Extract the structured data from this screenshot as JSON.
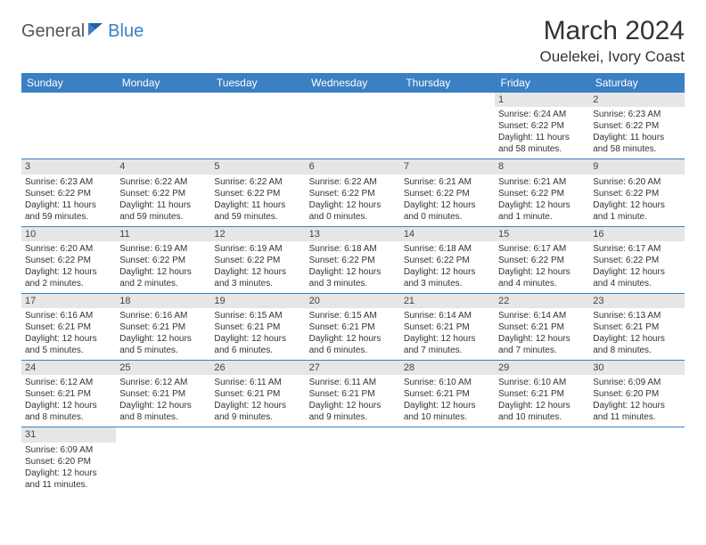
{
  "brand": {
    "part1": "General",
    "part2": "Blue"
  },
  "title": "March 2024",
  "location": "Ouelekei, Ivory Coast",
  "colors": {
    "header_bg": "#3b7fc4",
    "header_text": "#ffffff",
    "daynum_bg": "#e6e6e6",
    "row_divider": "#3b7fc4",
    "text": "#333333",
    "logo_gray": "#555555",
    "logo_blue": "#3b7fc4",
    "background": "#ffffff"
  },
  "typography": {
    "title_fontsize": 30,
    "location_fontsize": 17,
    "dayheader_fontsize": 12,
    "cell_fontsize": 10,
    "logo_fontsize": 20
  },
  "day_headers": [
    "Sunday",
    "Monday",
    "Tuesday",
    "Wednesday",
    "Thursday",
    "Friday",
    "Saturday"
  ],
  "weeks": [
    [
      {
        "empty": true
      },
      {
        "empty": true
      },
      {
        "empty": true
      },
      {
        "empty": true
      },
      {
        "empty": true
      },
      {
        "day": "1",
        "sunrise": "Sunrise: 6:24 AM",
        "sunset": "Sunset: 6:22 PM",
        "daylight1": "Daylight: 11 hours",
        "daylight2": "and 58 minutes."
      },
      {
        "day": "2",
        "sunrise": "Sunrise: 6:23 AM",
        "sunset": "Sunset: 6:22 PM",
        "daylight1": "Daylight: 11 hours",
        "daylight2": "and 58 minutes."
      }
    ],
    [
      {
        "day": "3",
        "sunrise": "Sunrise: 6:23 AM",
        "sunset": "Sunset: 6:22 PM",
        "daylight1": "Daylight: 11 hours",
        "daylight2": "and 59 minutes."
      },
      {
        "day": "4",
        "sunrise": "Sunrise: 6:22 AM",
        "sunset": "Sunset: 6:22 PM",
        "daylight1": "Daylight: 11 hours",
        "daylight2": "and 59 minutes."
      },
      {
        "day": "5",
        "sunrise": "Sunrise: 6:22 AM",
        "sunset": "Sunset: 6:22 PM",
        "daylight1": "Daylight: 11 hours",
        "daylight2": "and 59 minutes."
      },
      {
        "day": "6",
        "sunrise": "Sunrise: 6:22 AM",
        "sunset": "Sunset: 6:22 PM",
        "daylight1": "Daylight: 12 hours",
        "daylight2": "and 0 minutes."
      },
      {
        "day": "7",
        "sunrise": "Sunrise: 6:21 AM",
        "sunset": "Sunset: 6:22 PM",
        "daylight1": "Daylight: 12 hours",
        "daylight2": "and 0 minutes."
      },
      {
        "day": "8",
        "sunrise": "Sunrise: 6:21 AM",
        "sunset": "Sunset: 6:22 PM",
        "daylight1": "Daylight: 12 hours",
        "daylight2": "and 1 minute."
      },
      {
        "day": "9",
        "sunrise": "Sunrise: 6:20 AM",
        "sunset": "Sunset: 6:22 PM",
        "daylight1": "Daylight: 12 hours",
        "daylight2": "and 1 minute."
      }
    ],
    [
      {
        "day": "10",
        "sunrise": "Sunrise: 6:20 AM",
        "sunset": "Sunset: 6:22 PM",
        "daylight1": "Daylight: 12 hours",
        "daylight2": "and 2 minutes."
      },
      {
        "day": "11",
        "sunrise": "Sunrise: 6:19 AM",
        "sunset": "Sunset: 6:22 PM",
        "daylight1": "Daylight: 12 hours",
        "daylight2": "and 2 minutes."
      },
      {
        "day": "12",
        "sunrise": "Sunrise: 6:19 AM",
        "sunset": "Sunset: 6:22 PM",
        "daylight1": "Daylight: 12 hours",
        "daylight2": "and 3 minutes."
      },
      {
        "day": "13",
        "sunrise": "Sunrise: 6:18 AM",
        "sunset": "Sunset: 6:22 PM",
        "daylight1": "Daylight: 12 hours",
        "daylight2": "and 3 minutes."
      },
      {
        "day": "14",
        "sunrise": "Sunrise: 6:18 AM",
        "sunset": "Sunset: 6:22 PM",
        "daylight1": "Daylight: 12 hours",
        "daylight2": "and 3 minutes."
      },
      {
        "day": "15",
        "sunrise": "Sunrise: 6:17 AM",
        "sunset": "Sunset: 6:22 PM",
        "daylight1": "Daylight: 12 hours",
        "daylight2": "and 4 minutes."
      },
      {
        "day": "16",
        "sunrise": "Sunrise: 6:17 AM",
        "sunset": "Sunset: 6:22 PM",
        "daylight1": "Daylight: 12 hours",
        "daylight2": "and 4 minutes."
      }
    ],
    [
      {
        "day": "17",
        "sunrise": "Sunrise: 6:16 AM",
        "sunset": "Sunset: 6:21 PM",
        "daylight1": "Daylight: 12 hours",
        "daylight2": "and 5 minutes."
      },
      {
        "day": "18",
        "sunrise": "Sunrise: 6:16 AM",
        "sunset": "Sunset: 6:21 PM",
        "daylight1": "Daylight: 12 hours",
        "daylight2": "and 5 minutes."
      },
      {
        "day": "19",
        "sunrise": "Sunrise: 6:15 AM",
        "sunset": "Sunset: 6:21 PM",
        "daylight1": "Daylight: 12 hours",
        "daylight2": "and 6 minutes."
      },
      {
        "day": "20",
        "sunrise": "Sunrise: 6:15 AM",
        "sunset": "Sunset: 6:21 PM",
        "daylight1": "Daylight: 12 hours",
        "daylight2": "and 6 minutes."
      },
      {
        "day": "21",
        "sunrise": "Sunrise: 6:14 AM",
        "sunset": "Sunset: 6:21 PM",
        "daylight1": "Daylight: 12 hours",
        "daylight2": "and 7 minutes."
      },
      {
        "day": "22",
        "sunrise": "Sunrise: 6:14 AM",
        "sunset": "Sunset: 6:21 PM",
        "daylight1": "Daylight: 12 hours",
        "daylight2": "and 7 minutes."
      },
      {
        "day": "23",
        "sunrise": "Sunrise: 6:13 AM",
        "sunset": "Sunset: 6:21 PM",
        "daylight1": "Daylight: 12 hours",
        "daylight2": "and 8 minutes."
      }
    ],
    [
      {
        "day": "24",
        "sunrise": "Sunrise: 6:12 AM",
        "sunset": "Sunset: 6:21 PM",
        "daylight1": "Daylight: 12 hours",
        "daylight2": "and 8 minutes."
      },
      {
        "day": "25",
        "sunrise": "Sunrise: 6:12 AM",
        "sunset": "Sunset: 6:21 PM",
        "daylight1": "Daylight: 12 hours",
        "daylight2": "and 8 minutes."
      },
      {
        "day": "26",
        "sunrise": "Sunrise: 6:11 AM",
        "sunset": "Sunset: 6:21 PM",
        "daylight1": "Daylight: 12 hours",
        "daylight2": "and 9 minutes."
      },
      {
        "day": "27",
        "sunrise": "Sunrise: 6:11 AM",
        "sunset": "Sunset: 6:21 PM",
        "daylight1": "Daylight: 12 hours",
        "daylight2": "and 9 minutes."
      },
      {
        "day": "28",
        "sunrise": "Sunrise: 6:10 AM",
        "sunset": "Sunset: 6:21 PM",
        "daylight1": "Daylight: 12 hours",
        "daylight2": "and 10 minutes."
      },
      {
        "day": "29",
        "sunrise": "Sunrise: 6:10 AM",
        "sunset": "Sunset: 6:21 PM",
        "daylight1": "Daylight: 12 hours",
        "daylight2": "and 10 minutes."
      },
      {
        "day": "30",
        "sunrise": "Sunrise: 6:09 AM",
        "sunset": "Sunset: 6:20 PM",
        "daylight1": "Daylight: 12 hours",
        "daylight2": "and 11 minutes."
      }
    ],
    [
      {
        "day": "31",
        "sunrise": "Sunrise: 6:09 AM",
        "sunset": "Sunset: 6:20 PM",
        "daylight1": "Daylight: 12 hours",
        "daylight2": "and 11 minutes."
      },
      {
        "empty": true
      },
      {
        "empty": true
      },
      {
        "empty": true
      },
      {
        "empty": true
      },
      {
        "empty": true
      },
      {
        "empty": true
      }
    ]
  ]
}
